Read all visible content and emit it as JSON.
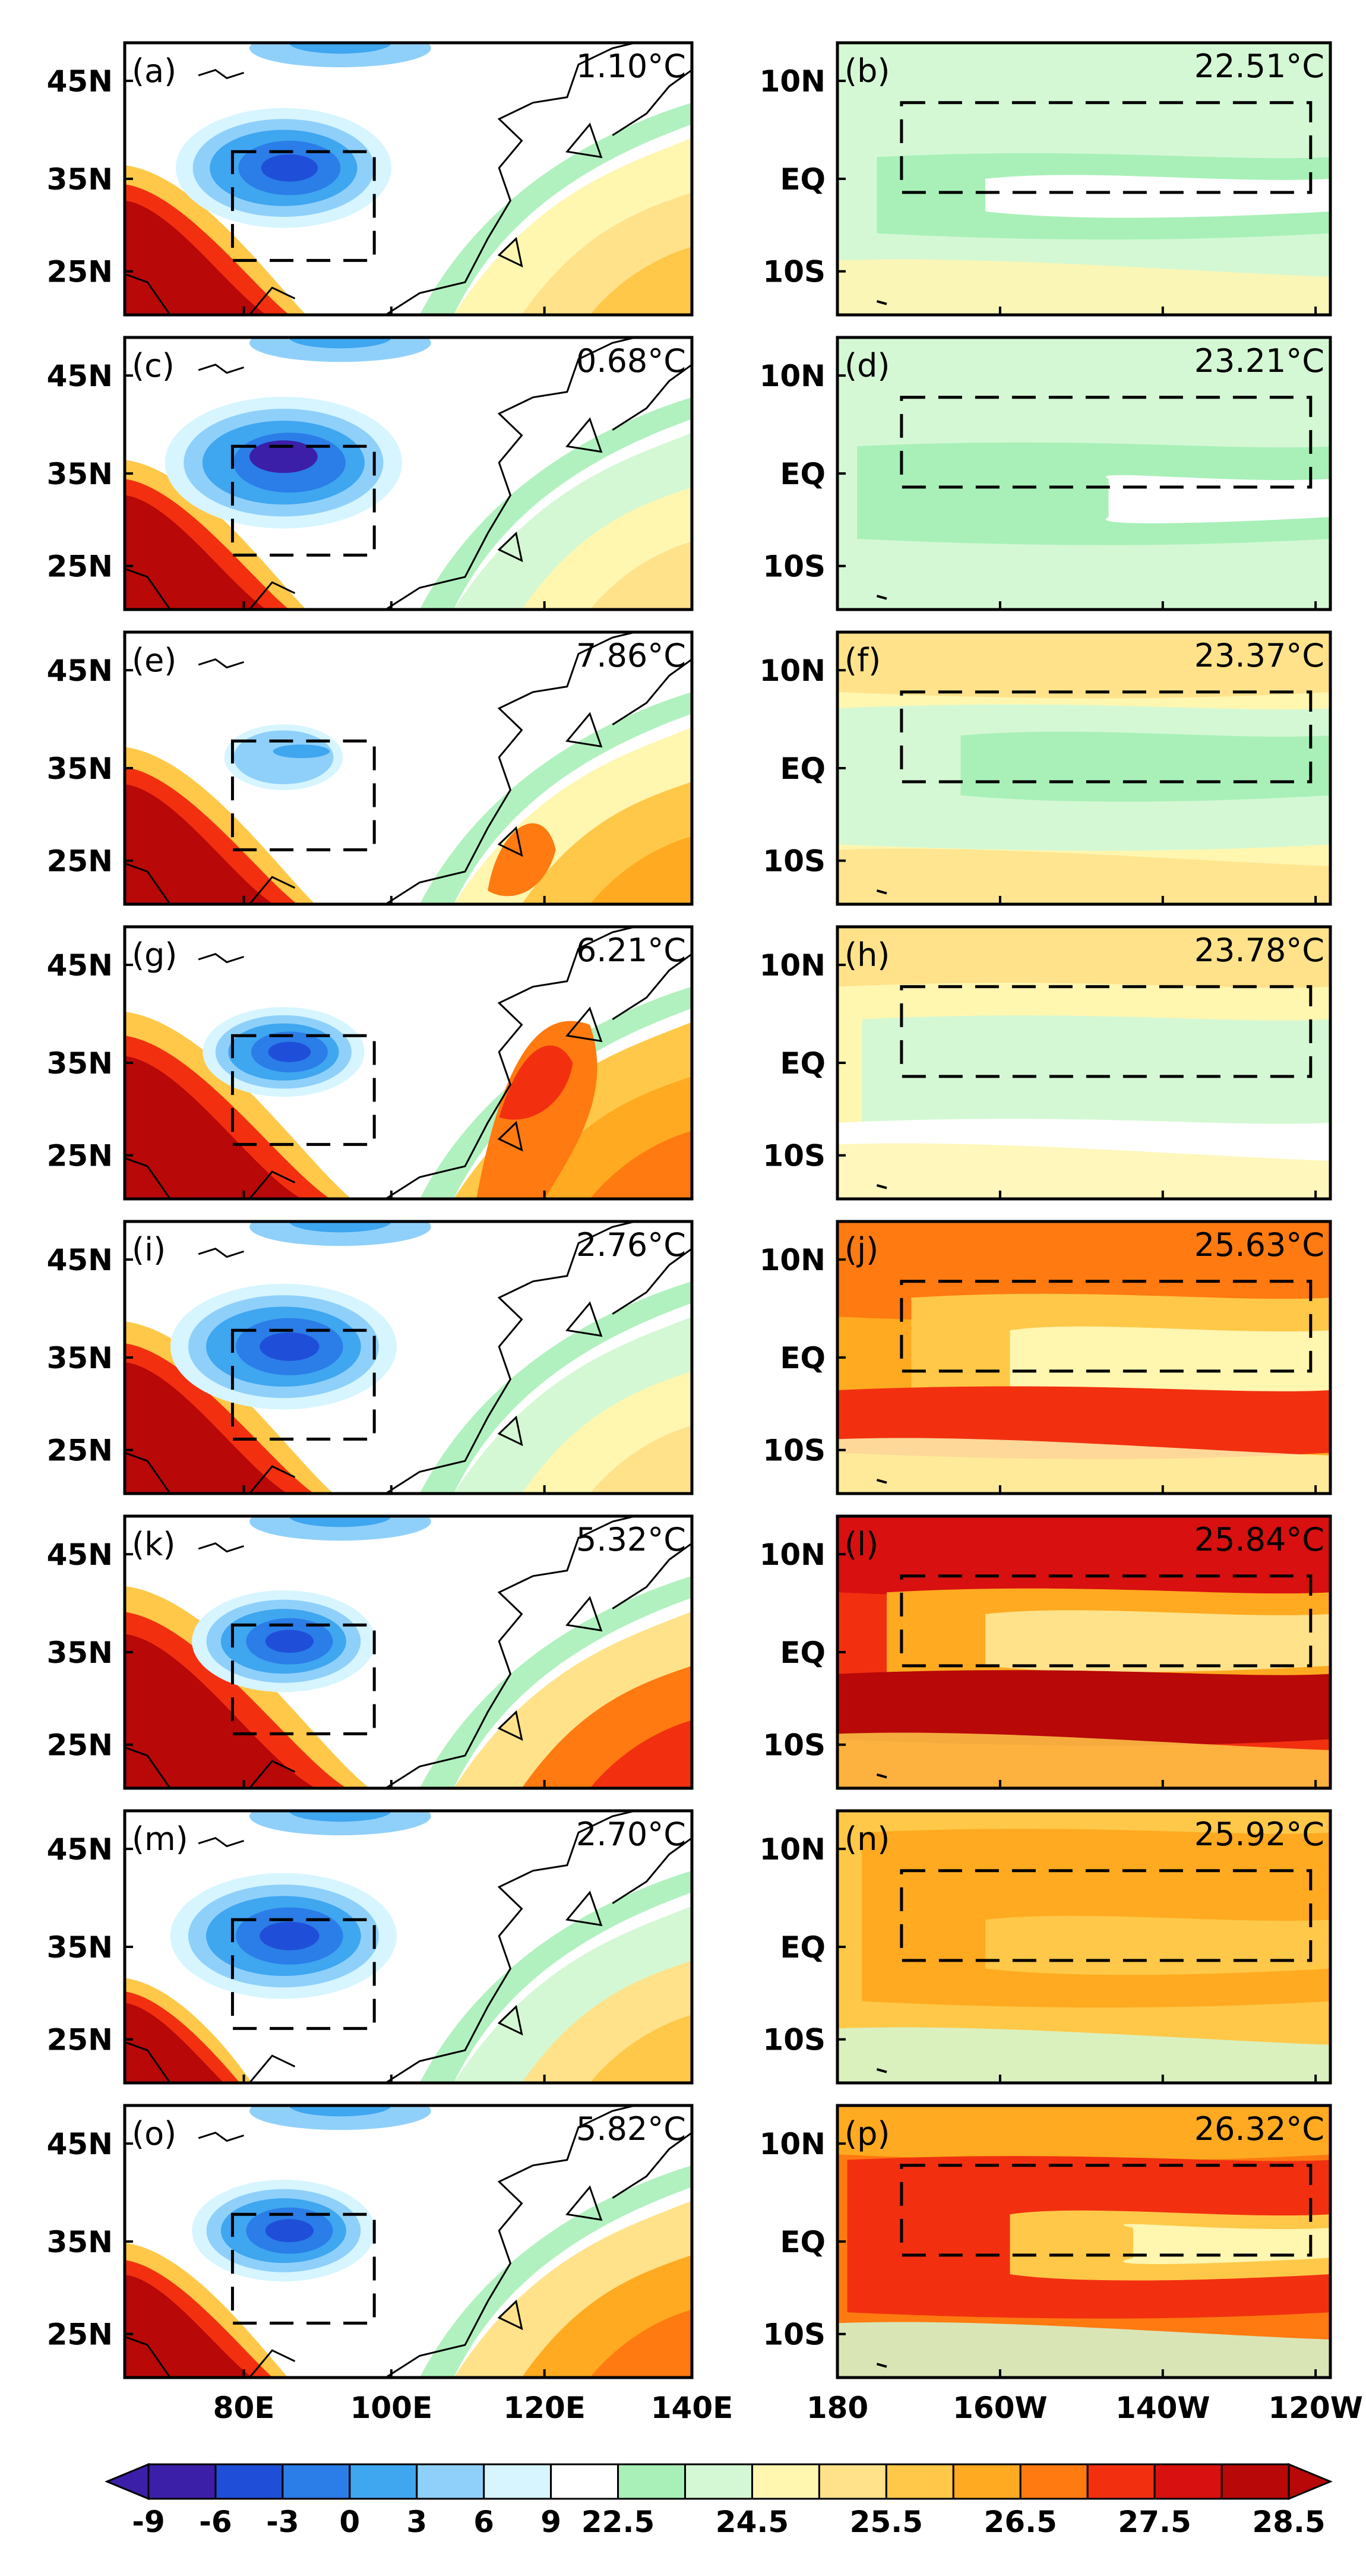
{
  "left_column": {
    "y_ticks": [
      "45N",
      "35N",
      "25N"
    ],
    "x_ticks": [
      "80E",
      "100E",
      "120E",
      "140E"
    ],
    "panels": [
      {
        "label": "(a)",
        "value": "1.10°C",
        "variant": 0
      },
      {
        "label": "(c)",
        "value": "0.68°C",
        "variant": 1
      },
      {
        "label": "(e)",
        "value": "7.86°C",
        "variant": 2
      },
      {
        "label": "(g)",
        "value": "6.21°C",
        "variant": 3
      },
      {
        "label": "(i)",
        "value": "2.76°C",
        "variant": 4
      },
      {
        "label": "(k)",
        "value": "5.32°C",
        "variant": 5
      },
      {
        "label": "(m)",
        "value": "2.70°C",
        "variant": 6
      },
      {
        "label": "(o)",
        "value": "5.82°C",
        "variant": 7
      }
    ]
  },
  "right_column": {
    "y_ticks": [
      "10N",
      "EQ",
      "10S"
    ],
    "x_ticks": [
      "180",
      "160W",
      "140W",
      "120W"
    ],
    "panels": [
      {
        "label": "(b)",
        "value": "22.51°C",
        "variant": 0
      },
      {
        "label": "(d)",
        "value": "23.21°C",
        "variant": 1
      },
      {
        "label": "(f)",
        "value": "23.37°C",
        "variant": 2
      },
      {
        "label": "(h)",
        "value": "23.78°C",
        "variant": 3
      },
      {
        "label": "(j)",
        "value": "25.63°C",
        "variant": 4
      },
      {
        "label": "(l)",
        "value": "25.84°C",
        "variant": 5
      },
      {
        "label": "(n)",
        "value": "25.92°C",
        "variant": 6
      },
      {
        "label": "(p)",
        "value": "26.32°C",
        "variant": 7
      }
    ]
  },
  "colorbar": {
    "colors": [
      "#3b1fa8",
      "#1f4fd8",
      "#2b7de8",
      "#3fa6f0",
      "#8fd0fa",
      "#d6f5ff",
      "#ffffff",
      "#a8f0b8",
      "#d4f8d4",
      "#fff6b0",
      "#ffe28a",
      "#ffc848",
      "#ffaa20",
      "#ff7a10",
      "#f23010",
      "#d81010",
      "#b80808"
    ],
    "tick_labels": [
      "-9",
      "-6",
      "-3",
      "0",
      "3",
      "6",
      "9",
      "22.5",
      "",
      "24.5",
      "",
      "25.5",
      "",
      "26.5",
      "",
      "27.5",
      "",
      "28.5"
    ]
  }
}
